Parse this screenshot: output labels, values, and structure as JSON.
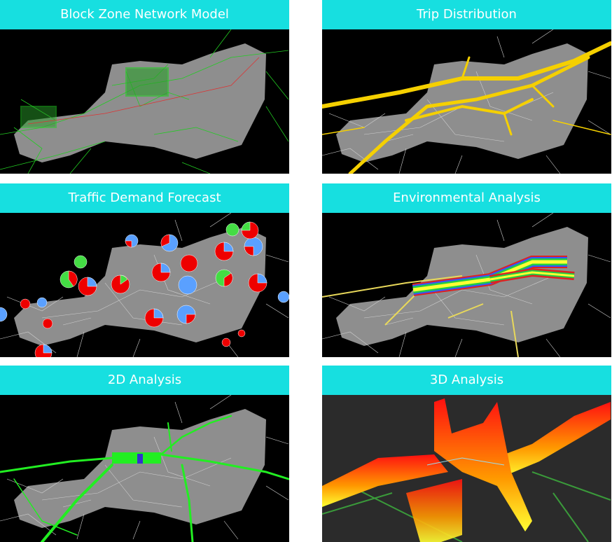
{
  "panels": [
    {
      "title": "Block Zone Network Model"
    },
    {
      "title": "Trip Distribution"
    },
    {
      "title": "Traffic Demand Forecast"
    },
    {
      "title": "Environmental Analysis"
    },
    {
      "title": "2D Analysis"
    },
    {
      "title": "3D Analysis"
    }
  ]
}
